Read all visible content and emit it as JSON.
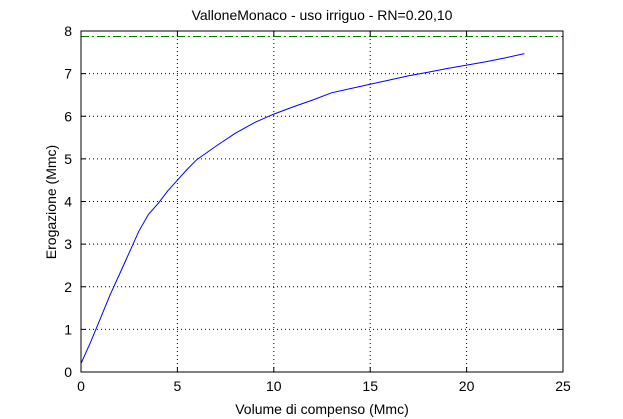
{
  "chart_data": {
    "type": "line",
    "title": "ValloneMonaco  -  uso irriguo  -   RN=0.20,10",
    "xlabel": "Volume di compenso (Mmc)",
    "ylabel": "Erogazione (Mmc)",
    "xlim": [
      0,
      25
    ],
    "ylim": [
      0,
      8
    ],
    "xticks": [
      "0",
      "5",
      "10",
      "15",
      "20",
      "25"
    ],
    "yticks": [
      "0",
      "1",
      "2",
      "3",
      "4",
      "5",
      "6",
      "7",
      "8"
    ],
    "grid": true,
    "series": [
      {
        "style": "solid",
        "color": "#0000ff",
        "x": [
          0,
          0.5,
          1,
          1.5,
          2,
          2.5,
          3,
          3.5,
          4,
          4.5,
          5,
          5.5,
          6,
          7,
          8,
          9,
          10,
          11,
          12,
          13,
          14,
          15,
          16,
          17,
          18,
          19,
          20,
          21,
          22,
          23
        ],
        "y": [
          0.2,
          0.7,
          1.25,
          1.8,
          2.3,
          2.8,
          3.3,
          3.7,
          3.95,
          4.25,
          4.5,
          4.75,
          4.98,
          5.3,
          5.6,
          5.85,
          6.05,
          6.22,
          6.38,
          6.55,
          6.65,
          6.75,
          6.85,
          6.95,
          7.03,
          7.12,
          7.2,
          7.28,
          7.37,
          7.47
        ]
      },
      {
        "style": "dashdot",
        "color": "#008000",
        "x": [
          0,
          25
        ],
        "y": [
          7.87,
          7.87
        ]
      }
    ]
  }
}
